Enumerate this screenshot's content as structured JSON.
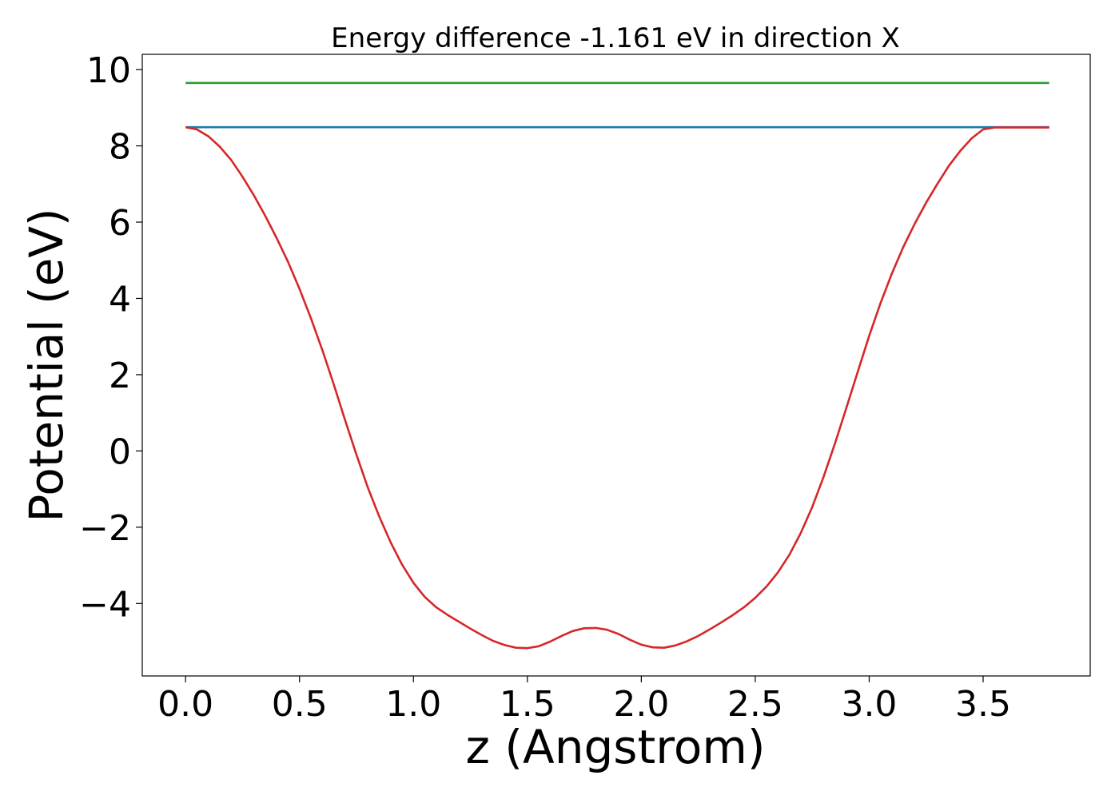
{
  "chart_data": {
    "type": "line",
    "title": "Energy difference -1.161 eV in direction X",
    "xlabel": "z (Angstrom)",
    "ylabel": "Potential (eV)",
    "xlim": [
      -0.19,
      3.97
    ],
    "ylim": [
      -5.9,
      10.4
    ],
    "x_ticks": [
      0.0,
      0.5,
      1.0,
      1.5,
      2.0,
      2.5,
      3.0,
      3.5
    ],
    "x_tick_labels": [
      "0.0",
      "0.5",
      "1.0",
      "1.5",
      "2.0",
      "2.5",
      "3.0",
      "3.5"
    ],
    "y_ticks": [
      -4,
      -2,
      0,
      2,
      4,
      6,
      8,
      10
    ],
    "y_tick_labels": [
      "−4",
      "−2",
      "0",
      "2",
      "4",
      "6",
      "8",
      "10"
    ],
    "grid": false,
    "series": [
      {
        "color": "#2ca02c",
        "x": [
          0.0,
          3.79
        ],
        "y": [
          9.65,
          9.65
        ]
      },
      {
        "color": "#1f77b4",
        "x": [
          0.0,
          3.79
        ],
        "y": [
          8.49,
          8.49
        ]
      },
      {
        "color": "#d62728",
        "x": [
          0.0,
          0.05,
          0.1,
          0.15,
          0.2,
          0.25,
          0.3,
          0.35,
          0.4,
          0.45,
          0.5,
          0.55,
          0.6,
          0.65,
          0.7,
          0.75,
          0.8,
          0.85,
          0.9,
          0.95,
          1.0,
          1.05,
          1.1,
          1.15,
          1.2,
          1.25,
          1.3,
          1.35,
          1.4,
          1.45,
          1.5,
          1.55,
          1.6,
          1.65,
          1.7,
          1.75,
          1.8,
          1.85,
          1.9,
          1.95,
          2.0,
          2.05,
          2.1,
          2.15,
          2.2,
          2.25,
          2.3,
          2.35,
          2.4,
          2.45,
          2.5,
          2.55,
          2.6,
          2.65,
          2.7,
          2.75,
          2.8,
          2.85,
          2.9,
          2.95,
          3.0,
          3.05,
          3.1,
          3.15,
          3.2,
          3.25,
          3.3,
          3.35,
          3.4,
          3.45,
          3.5,
          3.55,
          3.6,
          3.65,
          3.7,
          3.75,
          3.79
        ],
        "y": [
          8.49,
          8.43,
          8.25,
          7.98,
          7.63,
          7.19,
          6.7,
          6.16,
          5.58,
          4.95,
          4.25,
          3.48,
          2.65,
          1.75,
          0.81,
          -0.1,
          -0.96,
          -1.72,
          -2.4,
          -2.98,
          -3.46,
          -3.83,
          -4.1,
          -4.3,
          -4.48,
          -4.66,
          -4.83,
          -4.98,
          -5.09,
          -5.16,
          -5.17,
          -5.12,
          -5.0,
          -4.85,
          -4.72,
          -4.65,
          -4.64,
          -4.69,
          -4.8,
          -4.95,
          -5.08,
          -5.15,
          -5.16,
          -5.1,
          -4.99,
          -4.85,
          -4.68,
          -4.5,
          -4.31,
          -4.1,
          -3.85,
          -3.55,
          -3.18,
          -2.72,
          -2.15,
          -1.47,
          -0.68,
          0.2,
          1.13,
          2.08,
          3.02,
          3.88,
          4.66,
          5.35,
          5.96,
          6.51,
          7.01,
          7.48,
          7.87,
          8.2,
          8.43,
          8.48,
          8.48,
          8.48,
          8.48,
          8.48,
          8.48
        ]
      }
    ]
  }
}
